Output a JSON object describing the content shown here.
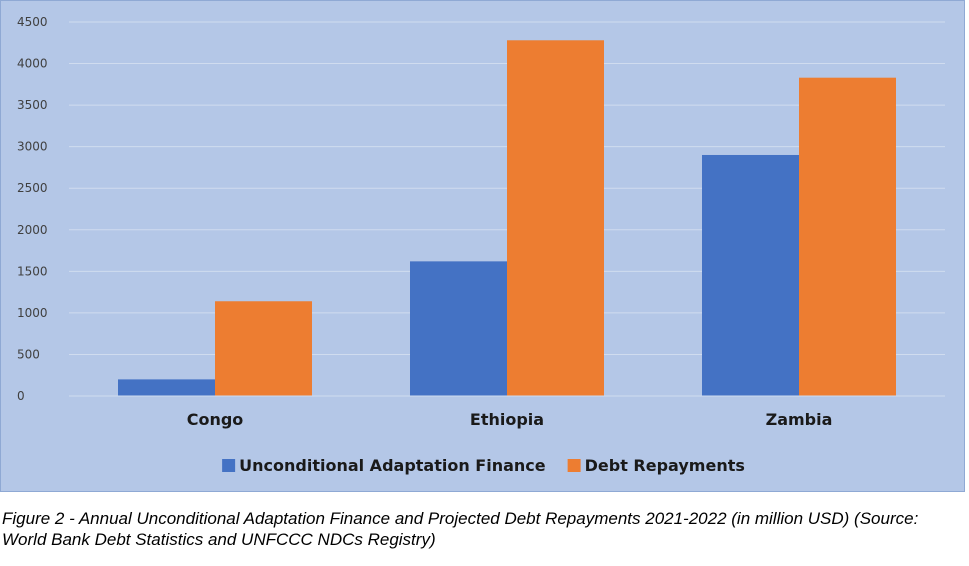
{
  "chart_data": {
    "type": "bar",
    "categories": [
      "Congo",
      "Ethiopia",
      "Zambia"
    ],
    "series": [
      {
        "name": "Unconditional Adaptation Finance",
        "color": "#4472c4",
        "values": [
          200,
          1620,
          2900
        ]
      },
      {
        "name": "Debt Repayments",
        "color": "#ed7d31",
        "values": [
          1140,
          4280,
          3830
        ]
      }
    ],
    "ylim": [
      0,
      4500
    ],
    "yticks": [
      0,
      500,
      1000,
      1500,
      2000,
      2500,
      3000,
      3500,
      4000,
      4500
    ],
    "grid": true,
    "legend_position": "bottom",
    "background_color": "#b4c7e7"
  },
  "caption": "Figure 2 - Annual Unconditional Adaptation Finance and Projected Debt Repayments 2021-2022 (in million USD) (Source: World Bank Debt Statistics and UNFCCC NDCs Registry)"
}
